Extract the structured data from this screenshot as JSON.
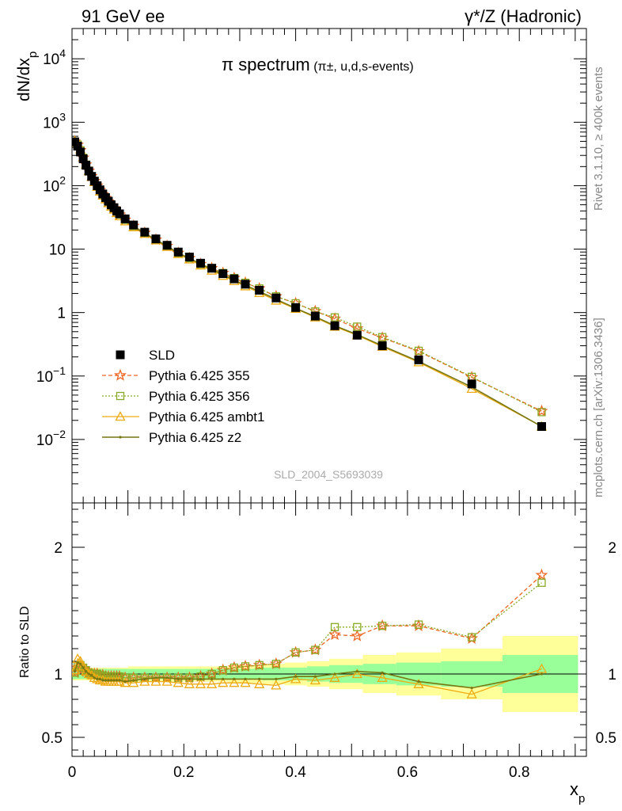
{
  "header": {
    "left": "91 GeV ee",
    "right": "γ*/Z (Hadronic)"
  },
  "plot_title": {
    "main": "π spectrum",
    "sub": "(π±, u,d,s-events)"
  },
  "watermark": "SLD_2004_S5693039",
  "side_labels": {
    "rivet": "Rivet 3.1.10, ≥ 400k events",
    "mcplots": "mcplots.cern.ch [arXiv:1306.3436]"
  },
  "legend": [
    {
      "key": "data",
      "label": "SLD"
    },
    {
      "key": "p355",
      "label": "Pythia 6.425 355"
    },
    {
      "key": "p356",
      "label": "Pythia 6.425 356"
    },
    {
      "key": "ambt1",
      "label": "Pythia 6.425 ambt1"
    },
    {
      "key": "z2",
      "label": "Pythia 6.425 z2"
    }
  ],
  "colors": {
    "data": "#000000",
    "p355": "#ee6622",
    "p356": "#88aa22",
    "ambt1": "#eeaa11",
    "z2": "#777711",
    "band_yellow": "#ffff99",
    "band_green": "#99ff99"
  },
  "chart_data": [
    {
      "type": "line",
      "panel": "main",
      "xlabel": "x_p",
      "ylabel": "dN/dx_p",
      "xlim": [
        0,
        0.92
      ],
      "ylim": [
        0.001,
        30000
      ],
      "yscale": "log",
      "x_ticks": [
        0,
        0.2,
        0.4,
        0.6,
        0.8
      ],
      "x_tick_labels": [
        "0",
        "0.2",
        "0.4",
        "0.6",
        "0.8"
      ],
      "y_ticks": [
        0.01,
        0.1,
        1,
        10,
        100,
        1000,
        10000
      ],
      "y_tick_labels": [
        "10^-2",
        "10^-1",
        "1",
        "10",
        "10^2",
        "10^3",
        "10^4"
      ],
      "legend_position": "bottom-left",
      "x": [
        0.005,
        0.01,
        0.015,
        0.02,
        0.025,
        0.03,
        0.035,
        0.04,
        0.045,
        0.05,
        0.055,
        0.06,
        0.065,
        0.07,
        0.075,
        0.08,
        0.085,
        0.095,
        0.11,
        0.13,
        0.15,
        0.17,
        0.19,
        0.21,
        0.23,
        0.25,
        0.27,
        0.29,
        0.31,
        0.335,
        0.365,
        0.4,
        0.435,
        0.47,
        0.51,
        0.555,
        0.62,
        0.715,
        0.84
      ],
      "series": [
        {
          "name": "SLD",
          "key": "data",
          "values": [
            490,
            420,
            340,
            265,
            210,
            170,
            140,
            118,
            100,
            86,
            74,
            65,
            57,
            50,
            45,
            40,
            36,
            30,
            24,
            18.5,
            14.5,
            11.5,
            9.0,
            7.5,
            6.0,
            5.0,
            4.1,
            3.4,
            2.8,
            2.25,
            1.7,
            1.2,
            0.88,
            0.62,
            0.44,
            0.3,
            0.18,
            0.075,
            0.016
          ]
        },
        {
          "name": "Pythia 6.425 355",
          "key": "p355",
          "values": [
            495,
            440,
            360,
            275,
            215,
            172,
            141,
            118,
            100,
            85,
            73,
            64,
            56,
            49,
            44,
            39,
            35,
            29,
            23.2,
            18.0,
            14.1,
            11.2,
            8.7,
            7.2,
            5.8,
            5.0,
            4.2,
            3.5,
            2.95,
            2.4,
            1.8,
            1.4,
            1.05,
            0.8,
            0.56,
            0.4,
            0.245,
            0.095,
            0.028
          ]
        },
        {
          "name": "Pythia 6.425 356",
          "key": "p356",
          "values": [
            495,
            445,
            362,
            276,
            215,
            172,
            141,
            118,
            100,
            85,
            73,
            64,
            56,
            49,
            44,
            39,
            35,
            29,
            23.2,
            18.0,
            14.1,
            11.2,
            8.7,
            7.2,
            5.8,
            5.0,
            4.2,
            3.5,
            2.95,
            2.4,
            1.8,
            1.4,
            1.04,
            0.84,
            0.6,
            0.41,
            0.25,
            0.097,
            0.027
          ]
        },
        {
          "name": "Pythia 6.425 ambt1",
          "key": "ambt1",
          "values": [
            505,
            470,
            375,
            280,
            215,
            170,
            138,
            114,
            96,
            81,
            70,
            61,
            53,
            47,
            42,
            37,
            33,
            27.5,
            22.2,
            17.5,
            13.8,
            10.9,
            8.4,
            6.9,
            5.55,
            4.6,
            3.8,
            3.15,
            2.6,
            2.05,
            1.55,
            1.15,
            0.84,
            0.6,
            0.44,
            0.29,
            0.165,
            0.063,
            0.016
          ]
        },
        {
          "name": "Pythia 6.425 z2",
          "key": "z2",
          "values": [
            500,
            460,
            370,
            278,
            214,
            170,
            138,
            114,
            96,
            82,
            70,
            61,
            54,
            47,
            42,
            37.5,
            33.5,
            28,
            22.5,
            17.8,
            14.0,
            11.2,
            8.6,
            7.2,
            5.8,
            4.8,
            3.95,
            3.25,
            2.7,
            2.15,
            1.62,
            1.17,
            0.86,
            0.62,
            0.45,
            0.3,
            0.17,
            0.067,
            0.016
          ]
        }
      ]
    },
    {
      "type": "line",
      "panel": "ratio",
      "ylabel": "Ratio to SLD",
      "xlabel": "x_p",
      "xlim": [
        0,
        0.92
      ],
      "ylim": [
        0.35,
        2.35
      ],
      "y_ticks": [
        0.5,
        1,
        2
      ],
      "y_tick_labels": [
        "0.5",
        "1",
        "2"
      ],
      "x": [
        0.005,
        0.01,
        0.015,
        0.02,
        0.025,
        0.03,
        0.035,
        0.04,
        0.045,
        0.05,
        0.055,
        0.06,
        0.065,
        0.07,
        0.075,
        0.08,
        0.085,
        0.095,
        0.11,
        0.13,
        0.15,
        0.17,
        0.19,
        0.21,
        0.23,
        0.25,
        0.27,
        0.29,
        0.31,
        0.335,
        0.365,
        0.4,
        0.435,
        0.47,
        0.51,
        0.555,
        0.62,
        0.715,
        0.84
      ],
      "bands": {
        "edges": [
          0.0,
          0.1,
          0.2,
          0.28,
          0.34,
          0.38,
          0.42,
          0.46,
          0.52,
          0.58,
          0.66,
          0.77,
          0.905
        ],
        "green": [
          0.04,
          0.04,
          0.04,
          0.04,
          0.05,
          0.05,
          0.06,
          0.07,
          0.08,
          0.09,
          0.1,
          0.15,
          0.2
        ],
        "yellow": [
          0.05,
          0.06,
          0.06,
          0.07,
          0.08,
          0.09,
          0.1,
          0.12,
          0.15,
          0.17,
          0.2,
          0.3,
          0.45
        ]
      },
      "series": [
        {
          "name": "Pythia 6.425 355",
          "key": "p355",
          "values": [
            1.01,
            1.05,
            1.06,
            1.04,
            1.02,
            1.01,
            1.0,
            1.0,
            1.0,
            0.99,
            0.99,
            0.98,
            0.98,
            0.98,
            0.98,
            0.98,
            0.98,
            0.97,
            0.97,
            0.97,
            0.97,
            0.97,
            0.97,
            0.97,
            0.98,
            1.0,
            1.03,
            1.05,
            1.06,
            1.07,
            1.08,
            1.17,
            1.19,
            1.31,
            1.3,
            1.38,
            1.38,
            1.28,
            1.78
          ]
        },
        {
          "name": "Pythia 6.425 356",
          "key": "p356",
          "values": [
            1.01,
            1.06,
            1.07,
            1.05,
            1.03,
            1.01,
            1.0,
            1.0,
            1.0,
            0.99,
            0.99,
            0.98,
            0.98,
            0.98,
            0.98,
            0.98,
            0.98,
            0.97,
            0.97,
            0.97,
            0.97,
            0.97,
            0.97,
            0.97,
            0.98,
            1.0,
            1.03,
            1.05,
            1.06,
            1.07,
            1.08,
            1.17,
            1.19,
            1.37,
            1.37,
            1.38,
            1.39,
            1.29,
            1.72
          ]
        },
        {
          "name": "Pythia 6.425 ambt1",
          "key": "ambt1",
          "values": [
            1.03,
            1.12,
            1.1,
            1.06,
            1.02,
            1.0,
            0.99,
            0.97,
            0.96,
            0.95,
            0.95,
            0.94,
            0.94,
            0.94,
            0.94,
            0.94,
            0.94,
            0.93,
            0.93,
            0.94,
            0.94,
            0.94,
            0.93,
            0.92,
            0.92,
            0.92,
            0.93,
            0.93,
            0.93,
            0.92,
            0.91,
            0.96,
            0.95,
            0.97,
            1.0,
            0.97,
            0.92,
            0.84,
            1.04
          ]
        },
        {
          "name": "Pythia 6.425 z2",
          "key": "z2",
          "values": [
            1.02,
            1.09,
            1.08,
            1.05,
            1.02,
            1.0,
            0.99,
            0.97,
            0.96,
            0.96,
            0.95,
            0.95,
            0.95,
            0.95,
            0.95,
            0.95,
            0.95,
            0.94,
            0.95,
            0.96,
            0.97,
            0.97,
            0.96,
            0.96,
            0.96,
            0.96,
            0.96,
            0.96,
            0.96,
            0.96,
            0.96,
            0.98,
            0.98,
            1.0,
            1.02,
            1.01,
            0.94,
            0.89,
            1.0
          ]
        }
      ]
    }
  ]
}
